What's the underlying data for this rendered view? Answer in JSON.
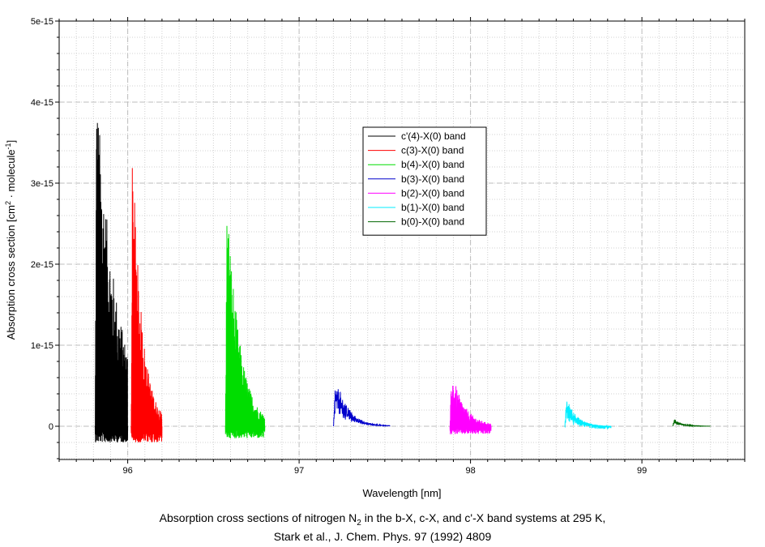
{
  "chart_data": {
    "type": "line",
    "xlabel": "Wavelength [nm]",
    "ylabel": "Absorption cross section [cm² · molecule⁻¹]",
    "ylabel_parts": {
      "main": "Absorption cross section [cm",
      "sup1": "2",
      "mid": " · molecule",
      "sup2": "-1",
      "end": "]"
    },
    "xlim": [
      95.6,
      99.6
    ],
    "ylim": [
      -4.2e-16,
      5e-15
    ],
    "x_ticks": [
      96,
      97,
      98,
      99
    ],
    "x_tick_labels": [
      "96",
      "97",
      "98",
      "99"
    ],
    "y_ticks": [
      0,
      1e-15,
      2e-15,
      3e-15,
      4e-15,
      5e-15
    ],
    "y_tick_labels": [
      "0",
      "1e-15",
      "2e-15",
      "3e-15",
      "4e-15",
      "5e-15"
    ],
    "grid": true,
    "legend_position": "center-right",
    "series": [
      {
        "name": "c'(4)-X(0) band",
        "color": "#000000",
        "x_range": [
          95.81,
          96.0
        ],
        "peak": 4.28e-15,
        "min": -2e-16,
        "decay": "slow"
      },
      {
        "name": "c(3)-X(0) band",
        "color": "#ff0000",
        "x_range": [
          96.02,
          96.2
        ],
        "peak": 3.53e-15,
        "min": -2e-16,
        "decay": "medium"
      },
      {
        "name": "b(4)-X(0) band",
        "color": "#00dd00",
        "x_range": [
          96.57,
          96.8
        ],
        "peak": 2.95e-15,
        "min": -1.5e-16,
        "decay": "medium"
      },
      {
        "name": "b(3)-X(0) band",
        "color": "#0000cc",
        "x_range": [
          97.2,
          97.53
        ],
        "peak": 6.3e-16,
        "min": 0,
        "decay": "smooth"
      },
      {
        "name": "b(2)-X(0) band",
        "color": "#ff00ff",
        "x_range": [
          97.88,
          98.12
        ],
        "peak": 7e-16,
        "min": -1e-16,
        "decay": "medium"
      },
      {
        "name": "b(1)-X(0) band",
        "color": "#00eeff",
        "x_range": [
          98.55,
          98.82
        ],
        "peak": 3.5e-16,
        "min": -4e-17,
        "decay": "smooth"
      },
      {
        "name": "b(0)-X(0) band",
        "color": "#006600",
        "x_range": [
          99.18,
          99.4
        ],
        "peak": 9e-17,
        "min": 0,
        "decay": "smooth"
      }
    ]
  },
  "caption": {
    "line1_a": "Absorption cross sections of nitrogen N",
    "line1_sub": "2",
    "line1_b": " in the b-X, c-X, and c'-X band systems at 295 K,",
    "line2": "Stark et al., J. Chem. Phys. 97 (1992) 4809"
  }
}
